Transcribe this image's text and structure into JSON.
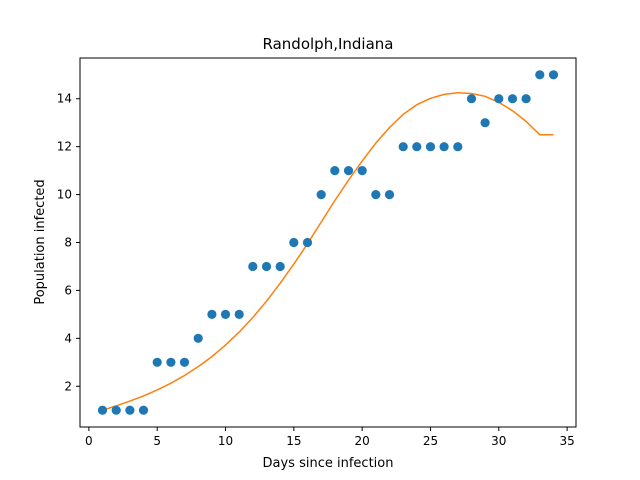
{
  "chart_data": {
    "type": "scatter",
    "title": "Randolph,Indiana",
    "xlabel": "Days since infection",
    "ylabel": "Population infected",
    "xlim": [
      -0.65,
      35.65
    ],
    "ylim": [
      0.3,
      15.7
    ],
    "xticks": [
      0,
      5,
      10,
      15,
      20,
      25,
      30,
      35
    ],
    "yticks": [
      2,
      4,
      6,
      8,
      10,
      12,
      14
    ],
    "grid": false,
    "colors": {
      "points": "#1f77b4",
      "fit": "#ff7f0e"
    },
    "series": [
      {
        "type": "scatter",
        "x": [
          1,
          2,
          3,
          4,
          5,
          6,
          7,
          8,
          9,
          10,
          11,
          12,
          13,
          14,
          15,
          16,
          17,
          18,
          19,
          20,
          21,
          22,
          23,
          24,
          25,
          26,
          27,
          28,
          29,
          30,
          31,
          32,
          33,
          34
        ],
        "y": [
          1,
          1,
          1,
          1,
          3,
          3,
          3,
          4,
          5,
          5,
          5,
          7,
          7,
          7,
          8,
          8,
          10,
          11,
          11,
          11,
          10,
          10,
          12,
          12,
          12,
          12,
          12,
          14,
          13,
          14,
          14,
          14,
          15,
          15
        ]
      },
      {
        "type": "line",
        "x": [
          1,
          2,
          3,
          4,
          5,
          6,
          7,
          8,
          9,
          10,
          11,
          12,
          13,
          14,
          15,
          16,
          17,
          18,
          19,
          20,
          21,
          22,
          23,
          24,
          25,
          26,
          27,
          28,
          29,
          30,
          31,
          32,
          33,
          34
        ],
        "y": [
          1.0,
          1.18,
          1.38,
          1.6,
          1.85,
          2.13,
          2.45,
          2.82,
          3.24,
          3.72,
          4.26,
          4.87,
          5.55,
          6.3,
          7.1,
          7.95,
          8.85,
          9.75,
          10.6,
          11.4,
          12.15,
          12.8,
          13.35,
          13.75,
          14.02,
          14.18,
          14.25,
          14.22,
          14.1,
          13.85,
          13.5,
          13.05,
          12.5,
          12.5
        ]
      }
    ]
  }
}
